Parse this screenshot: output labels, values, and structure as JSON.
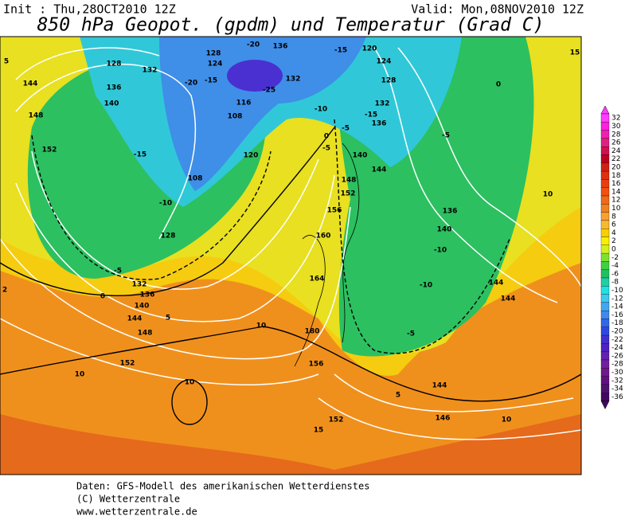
{
  "header": {
    "init": "Init : Thu,28OCT2010 12Z",
    "valid": "Valid: Mon,08NOV2010 12Z",
    "title": "850 hPa Geopot. (gpdm) und Temperatur (Grad C)"
  },
  "map": {
    "contour_labels": [
      "128",
      "132",
      "136",
      "140",
      "144",
      "148",
      "152",
      "-15",
      "128",
      "-5",
      "132",
      "136",
      "140",
      "144",
      "148",
      "152",
      "10",
      "10",
      "10",
      "5",
      "0",
      "128",
      "124",
      "-20",
      "-15",
      "-25",
      "132",
      "116",
      "108",
      "120",
      "108",
      "-10",
      "-5",
      "-10",
      "-15",
      "120",
      "124",
      "128",
      "132",
      "-15",
      "136",
      "-5",
      "0",
      "140",
      "144",
      "148",
      "152",
      "156",
      "160",
      "164",
      "180",
      "156",
      "152",
      "15",
      "146",
      "144",
      "10",
      "5",
      "-5",
      "-10",
      "-10",
      "140",
      "136",
      "-5",
      "0",
      "10",
      "144",
      "144",
      "15",
      "5",
      "2",
      "-20",
      "136"
    ]
  },
  "legend": {
    "values": [
      32,
      30,
      28,
      26,
      24,
      22,
      20,
      18,
      16,
      14,
      12,
      10,
      8,
      6,
      4,
      2,
      0,
      -2,
      -4,
      -6,
      -8,
      -10,
      -12,
      -14,
      -16,
      -18,
      -20,
      -22,
      -24,
      -26,
      -28,
      -30,
      -32,
      -34,
      -36
    ],
    "colors": [
      "#ff3cff",
      "#ff20e0",
      "#f020b0",
      "#e02080",
      "#d01050",
      "#c00020",
      "#d02010",
      "#e03010",
      "#e84010",
      "#f05010",
      "#f06818",
      "#f08020",
      "#f8a030",
      "#f8b830",
      "#f8d000",
      "#f8f000",
      "#d0f020",
      "#80e030",
      "#40d040",
      "#20c060",
      "#20d0a0",
      "#20e0e0",
      "#40c8f0",
      "#40a8f0",
      "#4088f0",
      "#3068e8",
      "#3048e0",
      "#4030d0",
      "#5020c0",
      "#6020b0",
      "#7020a0",
      "#701890",
      "#601080",
      "#501070",
      "#400860"
    ]
  },
  "footer": {
    "lines": [
      "Daten: GFS-Modell des amerikanischen Wetterdienstes",
      "(C) Wetterzentrale",
      "www.wetterzentrale.de"
    ]
  }
}
